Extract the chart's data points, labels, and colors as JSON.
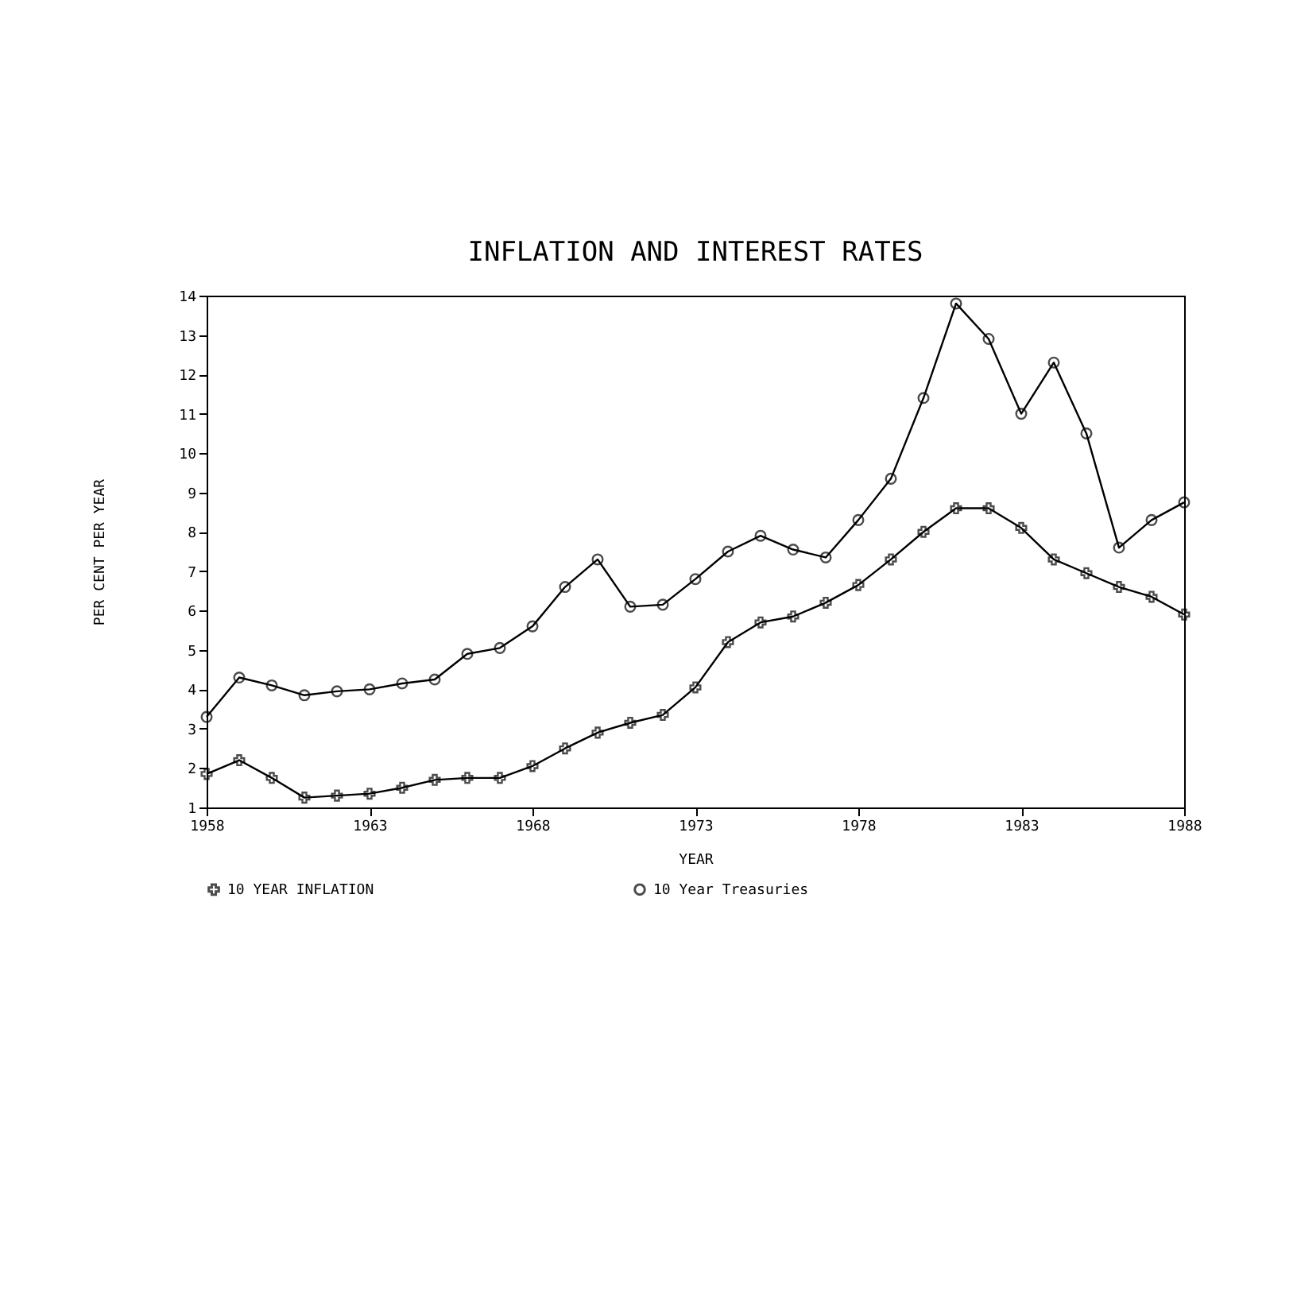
{
  "chart_data": {
    "type": "line",
    "title": "INFLATION AND INTEREST RATES",
    "xlabel": "YEAR",
    "ylabel": "PER CENT PER YEAR",
    "x": [
      1958,
      1959,
      1960,
      1961,
      1962,
      1963,
      1964,
      1965,
      1966,
      1967,
      1968,
      1969,
      1970,
      1971,
      1972,
      1973,
      1974,
      1975,
      1976,
      1977,
      1978,
      1979,
      1980,
      1981,
      1982,
      1983,
      1984,
      1985,
      1986,
      1987,
      1988
    ],
    "series": [
      {
        "name": "10 YEAR INFLATION",
        "color": "#000000",
        "marker": "cross",
        "values": [
          1.85,
          2.2,
          1.75,
          1.25,
          1.3,
          1.35,
          1.5,
          1.7,
          1.75,
          1.75,
          2.05,
          2.5,
          2.9,
          3.15,
          3.35,
          4.05,
          5.2,
          5.7,
          5.85,
          6.2,
          6.65,
          7.3,
          8.0,
          8.6,
          8.6,
          8.1,
          7.3,
          6.95,
          6.6,
          6.35,
          5.9
        ]
      },
      {
        "name": "10 Year Treasuries",
        "color": "#000000",
        "marker": "circle",
        "values": [
          3.3,
          4.3,
          4.1,
          3.85,
          3.95,
          4.0,
          4.15,
          4.25,
          4.9,
          5.05,
          5.6,
          6.6,
          7.3,
          6.1,
          6.15,
          6.8,
          7.5,
          7.9,
          7.55,
          7.35,
          8.3,
          9.35,
          11.4,
          13.8,
          12.9,
          11.0,
          12.3,
          10.5,
          7.6,
          8.3,
          8.75
        ]
      }
    ],
    "xlim": [
      1958,
      1988
    ],
    "xticks": [
      1958,
      1963,
      1968,
      1973,
      1978,
      1983,
      1988
    ],
    "ylim": [
      1,
      14
    ],
    "yticks": [
      1,
      2,
      3,
      4,
      5,
      6,
      7,
      8,
      9,
      10,
      11,
      12,
      13,
      14
    ],
    "grid": false,
    "legend": "bottom",
    "line_style": "solid"
  }
}
